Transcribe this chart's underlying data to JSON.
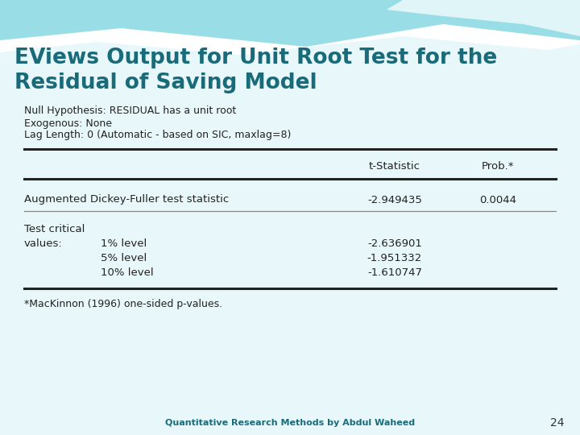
{
  "title_line1": "EViews Output for Unit Root Test for the",
  "title_line2": "Residual of Saving Model",
  "title_color": "#1a6b7a",
  "null_hypothesis": "Null Hypothesis: RESIDUAL has a unit root",
  "exogenous": "Exogenous: None",
  "lag_length": "Lag Length: 0 (Automatic - based on SIC, maxlag=8)",
  "col_header1": "t-Statistic",
  "col_header2": "Prob.*",
  "adf_label": "Augmented Dickey-Fuller test statistic",
  "adf_tstat": "-2.949435",
  "adf_prob": "0.0044",
  "critical_label1": "Test critical",
  "critical_label2": "values:",
  "cv_1pct_label": "1% level",
  "cv_5pct_label": "5% level",
  "cv_10pct_label": "10% level",
  "cv_1pct": "-2.636901",
  "cv_5pct": "-1.951332",
  "cv_10pct": "-1.610747",
  "footnote": "*MacKinnon (1996) one-sided p-values.",
  "footer_text": "Quantitative Research Methods by Abdul Waheed",
  "footer_page": "24",
  "footer_color": "#1a6b7a",
  "wave_top_color": "#80d8e0",
  "wave_mid_color": "#b0e8ee",
  "wave_light_color": "#d8f2f5"
}
